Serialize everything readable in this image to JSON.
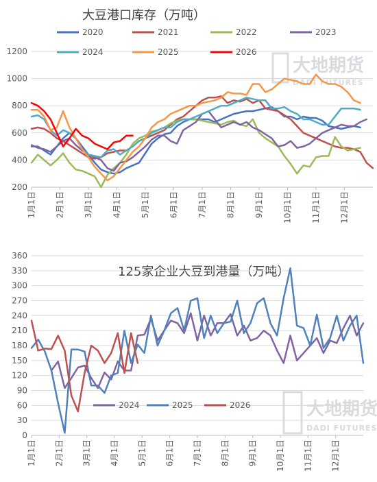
{
  "watermark": {
    "cn": "大地期货",
    "en": "DADI FUTURES"
  },
  "chart_data": [
    {
      "type": "line",
      "title": "大豆港口库存（万吨）",
      "ylim": [
        200,
        1200
      ],
      "yticks": [
        200,
        400,
        600,
        800,
        1000,
        1200
      ],
      "xticks": [
        "1月1日",
        "2月1日",
        "3月1日",
        "4月1日",
        "5月1日",
        "6月1日",
        "7月1日",
        "8月1日",
        "9月1日",
        "10月1日",
        "11月1日",
        "12月1日"
      ],
      "grid": "horizontal",
      "legend_placement": "top",
      "series": [
        {
          "name": "2020",
          "color": "#4472c4",
          "values": [
            500,
            500,
            470,
            440,
            500,
            560,
            600,
            560,
            500,
            440,
            380,
            330,
            310,
            300,
            310,
            340,
            360,
            380,
            450,
            520,
            560,
            590,
            600,
            650,
            680,
            700,
            700,
            700,
            700,
            680,
            700,
            720,
            740,
            750,
            760,
            760,
            770,
            780,
            790,
            760,
            720,
            720,
            700,
            720,
            710,
            710,
            690,
            650,
            640,
            630,
            640,
            650,
            640
          ]
        },
        {
          "name": "2021",
          "color": "#c0504d",
          "values": [
            630,
            640,
            630,
            600,
            560,
            540,
            510,
            480,
            450,
            420,
            410,
            420,
            450,
            460,
            470,
            470,
            500,
            540,
            560,
            580,
            600,
            620,
            660,
            700,
            720,
            760,
            800,
            840,
            860,
            860,
            870,
            820,
            840,
            830,
            850,
            820,
            840,
            780,
            770,
            760,
            730,
            700,
            650,
            600,
            580,
            560,
            540,
            520,
            500,
            490,
            490,
            480,
            460,
            380,
            340
          ]
        },
        {
          "name": "2022",
          "color": "#9bbb59",
          "values": [
            380,
            440,
            400,
            360,
            400,
            450,
            380,
            330,
            320,
            300,
            280,
            200,
            290,
            340,
            380,
            440,
            520,
            560,
            580,
            610,
            620,
            640,
            670,
            690,
            700,
            700,
            700,
            690,
            680,
            670,
            660,
            680,
            690,
            660,
            650,
            700,
            600,
            560,
            530,
            500,
            430,
            370,
            300,
            360,
            350,
            420,
            430,
            430,
            570,
            500,
            470,
            480,
            490
          ]
        },
        {
          "name": "2023",
          "color": "#8064a2",
          "values": [
            510,
            490,
            480,
            460,
            500,
            540,
            560,
            510,
            470,
            440,
            420,
            400,
            340,
            320,
            380,
            390,
            420,
            460,
            500,
            550,
            580,
            580,
            540,
            520,
            620,
            650,
            680,
            740,
            760,
            700,
            640,
            660,
            680,
            660,
            680,
            640,
            620,
            590,
            560,
            500,
            510,
            540,
            490,
            500,
            520,
            560,
            600,
            620,
            640,
            660,
            650,
            650,
            680,
            700
          ]
        },
        {
          "name": "2024",
          "color": "#4bacc6",
          "values": [
            720,
            730,
            700,
            620,
            580,
            620,
            600,
            560,
            480,
            440,
            430,
            420,
            470,
            480,
            440,
            470,
            500,
            540,
            560,
            600,
            620,
            640,
            640,
            680,
            700,
            700,
            720,
            740,
            760,
            780,
            800,
            800,
            820,
            840,
            860,
            850,
            840,
            840,
            780,
            780,
            790,
            760,
            740,
            700,
            700,
            680,
            660,
            660,
            720,
            780,
            780,
            780,
            770
          ]
        },
        {
          "name": "2025",
          "color": "#f79646",
          "values": [
            770,
            770,
            720,
            620,
            640,
            760,
            640,
            560,
            480,
            420,
            350,
            300,
            250,
            280,
            340,
            400,
            460,
            500,
            560,
            640,
            680,
            700,
            740,
            760,
            780,
            800,
            800,
            820,
            830,
            840,
            860,
            900,
            890,
            890,
            880,
            960,
            960,
            900,
            920,
            960,
            1000,
            990,
            980,
            960,
            960,
            1030,
            980,
            960,
            960,
            940,
            900,
            840,
            820
          ]
        },
        {
          "name": "2026",
          "color": "#ff0000",
          "values": [
            820,
            800,
            760,
            700,
            600,
            500,
            560,
            630,
            580,
            560,
            520,
            500,
            480,
            530,
            540,
            580,
            580
          ]
        }
      ]
    },
    {
      "type": "line",
      "title": "125家企业大豆到港量（万吨）",
      "ylim": [
        0,
        360
      ],
      "yticks": [
        0,
        30,
        60,
        90,
        120,
        150,
        180,
        210,
        240,
        270,
        300,
        330,
        360
      ],
      "xticks": [
        "1月1日",
        "2月1日",
        "3月1日",
        "4月1日",
        "5月1日",
        "6月1日",
        "7月1日",
        "8月1日",
        "9月1日",
        "10月1日",
        "11月1日",
        "12月1日"
      ],
      "grid": "horizontal",
      "legend_placement": "bottom-center",
      "series": [
        {
          "name": "2024",
          "color": "#8064a2",
          "values": [
            null,
            null,
            null,
            130,
            148,
            95,
            115,
            136,
            140,
            115,
            95,
            126,
            112,
            148,
            130,
            130,
            200,
            202,
            234,
            190,
            210,
            230,
            225,
            205,
            245,
            190,
            240,
            200,
            225,
            225,
            243,
            200,
            220,
            190,
            195,
            210,
            200,
            170,
            145,
            200,
            150,
            165,
            180,
            195,
            165,
            190,
            185,
            215,
            240,
            200,
            225
          ]
        },
        {
          "name": "2025",
          "color": "#4f81bd",
          "values": [
            175,
            192,
            168,
            130,
            65,
            5,
            172,
            172,
            168,
            100,
            100,
            85,
            120,
            125,
            210,
            145,
            182,
            165,
            240,
            180,
            210,
            245,
            255,
            210,
            270,
            275,
            195,
            240,
            205,
            225,
            228,
            270,
            205,
            225,
            265,
            275,
            225,
            200,
            275,
            335,
            220,
            215,
            180,
            242,
            175,
            195,
            240,
            190,
            220,
            240,
            145
          ]
        },
        {
          "name": "2026",
          "color": "#c0504d",
          "values": [
            230,
            170,
            174,
            173,
            200,
            170,
            80,
            48,
            125,
            180,
            170,
            145,
            165,
            205,
            125,
            205,
            145
          ]
        }
      ]
    }
  ]
}
